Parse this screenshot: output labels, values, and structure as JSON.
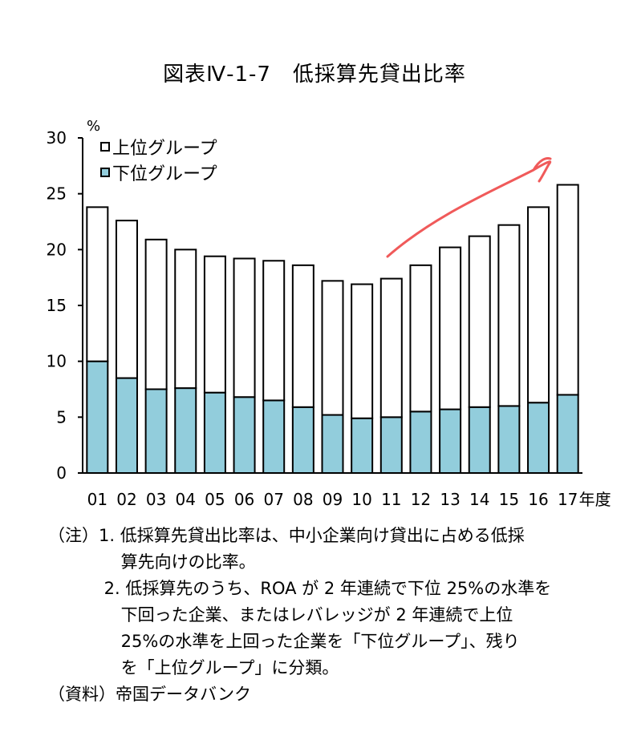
{
  "chart_data": {
    "type": "bar",
    "stacked": true,
    "title": "図表Ⅳ-1-7　低採算先貸出比率",
    "ylabel": "%",
    "xlabel_suffix": "年度",
    "ylim": [
      0,
      30
    ],
    "yticks": [
      0,
      5,
      10,
      15,
      20,
      25,
      30
    ],
    "categories": [
      "01",
      "02",
      "03",
      "04",
      "05",
      "06",
      "07",
      "08",
      "09",
      "10",
      "11",
      "12",
      "13",
      "14",
      "15",
      "16",
      "17"
    ],
    "series": [
      {
        "name": "下位グループ",
        "color": "#92CDDC",
        "values": [
          10.0,
          8.5,
          7.5,
          7.6,
          7.2,
          6.8,
          6.5,
          5.9,
          5.2,
          4.9,
          5.0,
          5.5,
          5.7,
          5.9,
          6.0,
          6.3,
          7.0
        ]
      },
      {
        "name": "上位グループ",
        "color": "#FFFFFF",
        "values": [
          13.8,
          14.1,
          13.4,
          12.4,
          12.2,
          12.4,
          12.5,
          12.7,
          12.0,
          12.0,
          12.4,
          13.1,
          14.5,
          15.3,
          16.2,
          17.5,
          18.8
        ]
      }
    ],
    "legend": [
      "上位グループ",
      "下位グループ"
    ],
    "legend_position": "top-left",
    "annotation_color": "#F05A5A"
  },
  "notes": [
    "（注）1. 低採算先貸出比率は、中小企業向け貸出に占める低採",
    "　　　　  算先向けの比率。",
    "　　　 2. 低採算先のうち、ROA が 2 年連続で下位 25%の水準を",
    "　　　　  下回った企業、またはレバレッジが 2 年連続で上位",
    "　　　　  25%の水準を上回った企業を「下位グループ」、残り",
    "　　　　  を「上位グループ」に分類。",
    "（資料）帝国データバンク"
  ]
}
